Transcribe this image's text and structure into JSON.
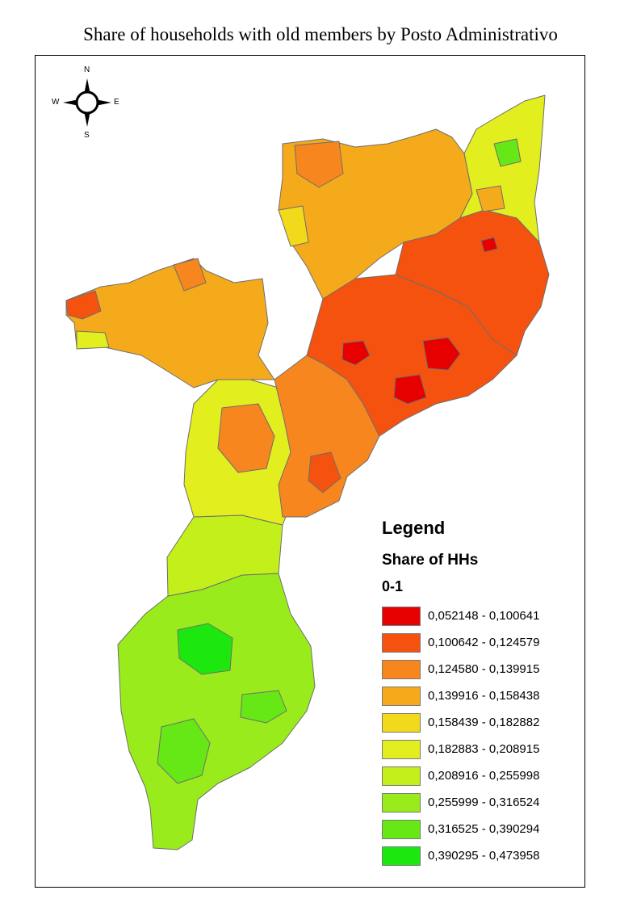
{
  "title": "Share of households with old members by Posto Administrativo",
  "compass": {
    "north": "N",
    "south": "S",
    "east": "E",
    "west": "W"
  },
  "legend": {
    "title": "Legend",
    "field": "Share of HHs",
    "range": "0-1",
    "classes": [
      {
        "label": "0,052148 - 0,100641",
        "color": "#e60000"
      },
      {
        "label": "0,100642 - 0,124579",
        "color": "#f5520f"
      },
      {
        "label": "0,124580 - 0,139915",
        "color": "#f7861e"
      },
      {
        "label": "0,139916 - 0,158438",
        "color": "#f5aa1c"
      },
      {
        "label": "0,158439 - 0,182882",
        "color": "#f2d91a"
      },
      {
        "label": "0,182883 - 0,208915",
        "color": "#e3ee1f"
      },
      {
        "label": "0,208916 - 0,255998",
        "color": "#c3f01a"
      },
      {
        "label": "0,255999 - 0,316524",
        "color": "#9aeb1c"
      },
      {
        "label": "0,316525 - 0,390294",
        "color": "#66e817"
      },
      {
        "label": "0,390295 - 0,473958",
        "color": "#1ce80f"
      }
    ]
  }
}
